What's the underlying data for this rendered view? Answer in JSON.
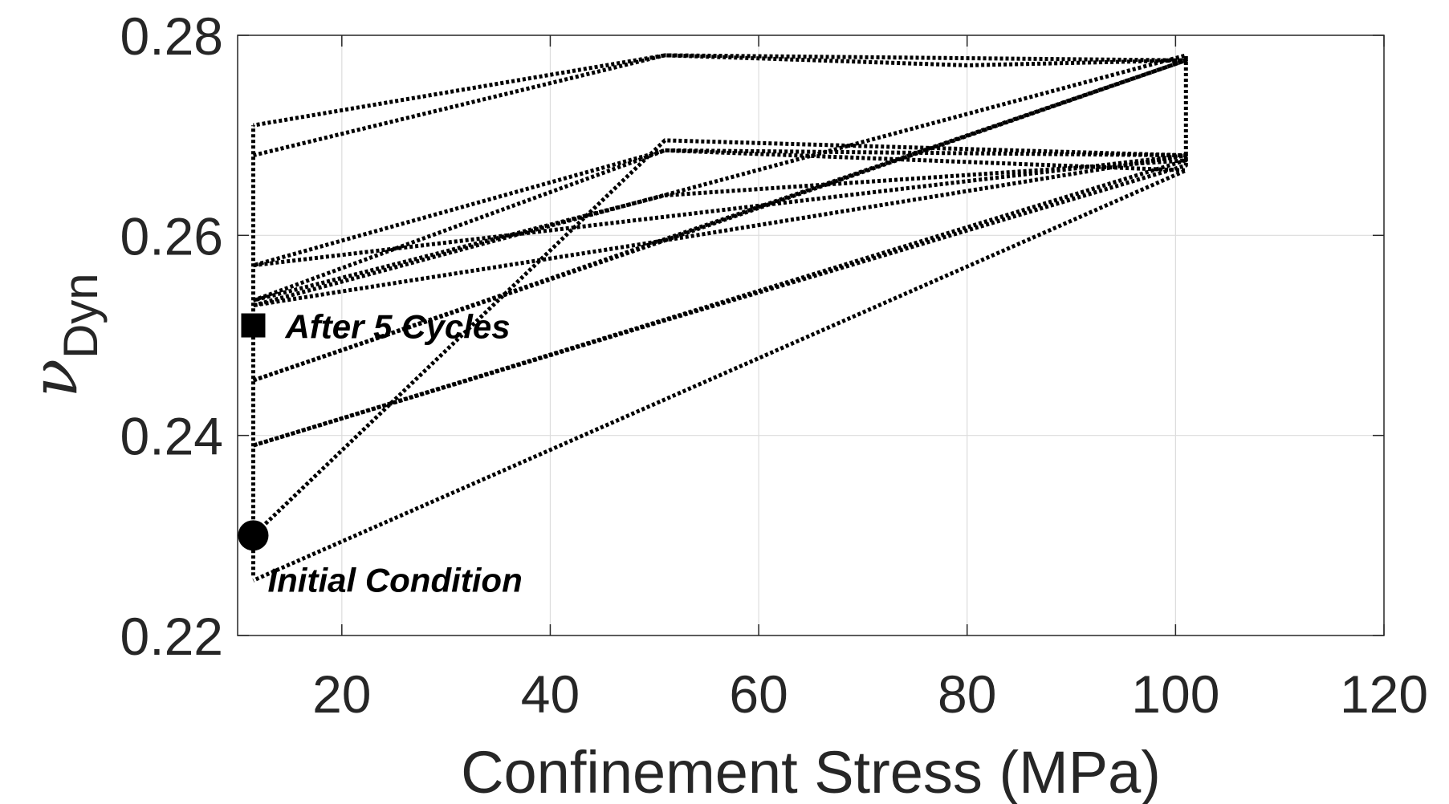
{
  "chart_data": {
    "type": "line",
    "xlabel": "Confinement Stress (MPa)",
    "ylabel_symbol": "ν",
    "ylabel_subscript": "Dyn",
    "xlim": [
      10,
      120
    ],
    "ylim": [
      0.22,
      0.28
    ],
    "xticks": [
      20,
      40,
      60,
      80,
      100,
      120
    ],
    "xtick_labels": [
      "20",
      "40",
      "60",
      "80",
      "100",
      "120"
    ],
    "yticks": [
      0.22,
      0.24,
      0.26,
      0.28
    ],
    "ytick_labels": [
      "0.22",
      "0.24",
      "0.26",
      "0.28"
    ],
    "grid": true,
    "line_style": "dotted",
    "line_color": "#000000",
    "series": [
      {
        "x": [
          11.5,
          11.5,
          11.5
        ],
        "y": [
          0.226,
          0.23,
          0.271
        ]
      },
      {
        "x": [
          11.5,
          51,
          101,
          51,
          11.5
        ],
        "y": [
          0.23,
          0.2695,
          0.268,
          0.2595,
          0.2455
        ]
      },
      {
        "x": [
          11.5,
          101,
          51,
          11.5
        ],
        "y": [
          0.2455,
          0.2775,
          0.2595,
          0.253
        ]
      },
      {
        "x": [
          11.5,
          101,
          101,
          51,
          11.5
        ],
        "y": [
          0.253,
          0.278,
          0.267,
          0.2515,
          0.239
        ]
      },
      {
        "x": [
          11.5,
          101,
          51,
          11.5
        ],
        "y": [
          0.239,
          0.2675,
          0.264,
          0.2535
        ]
      },
      {
        "x": [
          11.5,
          51,
          101,
          11.5
        ],
        "y": [
          0.2535,
          0.2685,
          0.2665,
          0.2255
        ]
      },
      {
        "x": [
          11.5,
          51,
          101,
          80,
          51,
          11.5
        ],
        "y": [
          0.268,
          0.278,
          0.2775,
          0.277,
          0.278,
          0.271
        ]
      },
      {
        "x": [
          11.5,
          101,
          51,
          11.5
        ],
        "y": [
          0.257,
          0.268,
          0.2685,
          0.257
        ]
      }
    ],
    "markers": [
      {
        "shape": "circle",
        "x": 11.5,
        "y": 0.23,
        "label": "Initial Condition"
      },
      {
        "shape": "square",
        "x": 11.5,
        "y": 0.251,
        "label": "After 5 Cycles"
      }
    ]
  }
}
